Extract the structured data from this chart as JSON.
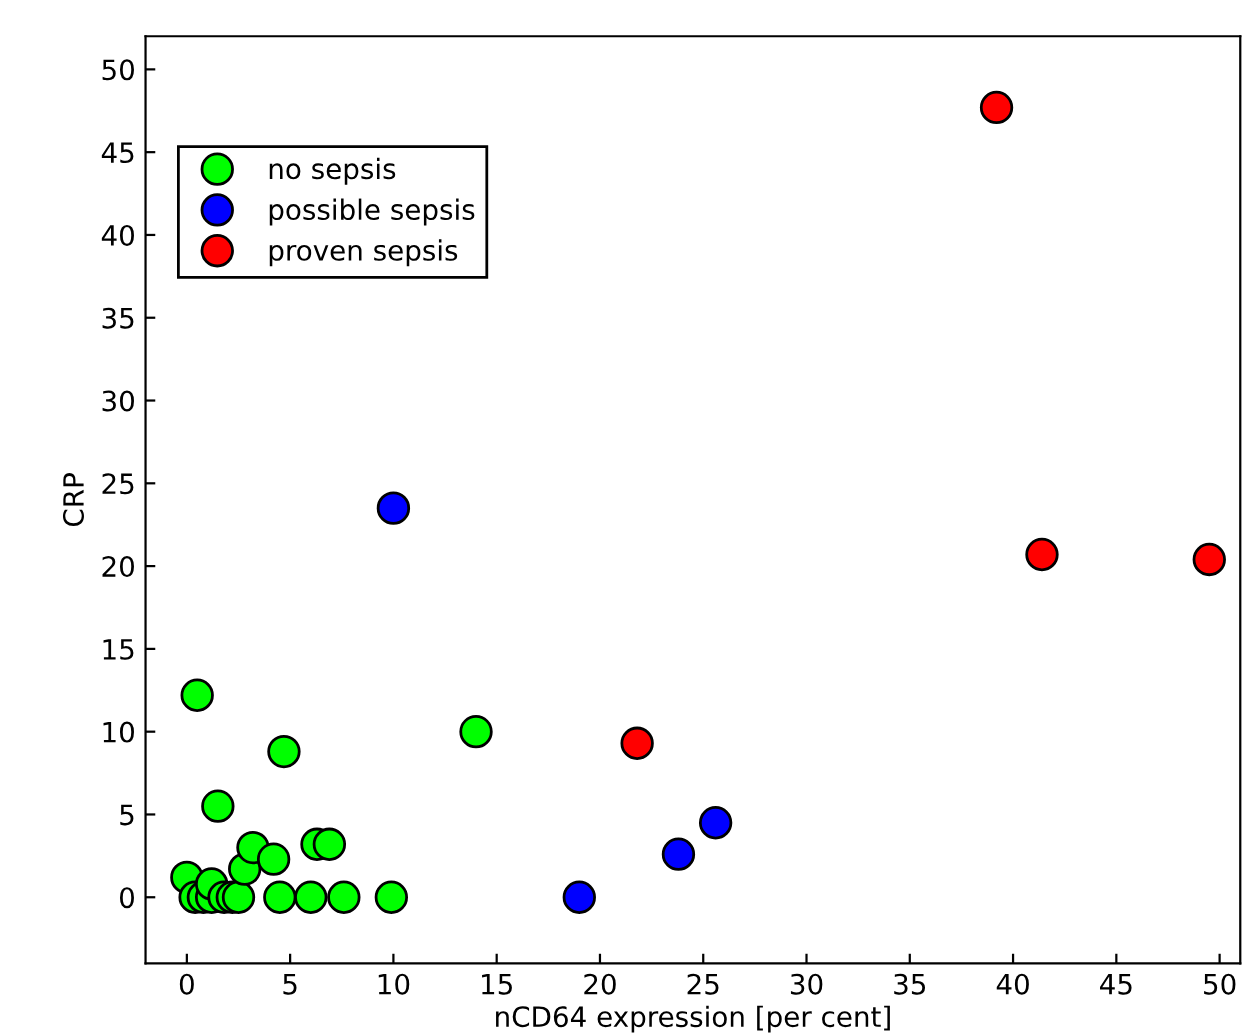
{
  "chart_data": {
    "type": "scatter",
    "xlabel": "nCD64 expression [per cent]",
    "ylabel": "CRP",
    "xlim": [
      -2,
      51
    ],
    "ylim": [
      -4,
      52
    ],
    "xticks": [
      0,
      5,
      10,
      15,
      20,
      25,
      30,
      35,
      40,
      45,
      50
    ],
    "yticks": [
      0,
      5,
      10,
      15,
      20,
      25,
      30,
      35,
      40,
      45,
      50
    ],
    "grid": false,
    "legend": "top left",
    "marker": "circle",
    "series": [
      {
        "name": "no sepsis",
        "color": "#00ff00",
        "x": [
          0,
          0.5,
          0.4,
          0.8,
          1.2,
          1.2,
          1.5,
          1.8,
          2.2,
          2.5,
          2.8,
          3.2,
          4.2,
          4.5,
          4.7,
          6.0,
          6.3,
          6.9,
          7.6,
          9.9,
          14
        ],
        "values": [
          1.2,
          12.2,
          0,
          0,
          0,
          0.8,
          5.5,
          0,
          0,
          0,
          1.7,
          3,
          2.3,
          0,
          8.8,
          0,
          3.2,
          3.2,
          0,
          0,
          10
        ]
      },
      {
        "name": "possible sepsis",
        "color": "#0000ff",
        "x": [
          10,
          19,
          23.8,
          25.6
        ],
        "values": [
          23.5,
          0,
          2.6,
          4.5
        ]
      },
      {
        "name": "proven sepsis",
        "color": "#ff0000",
        "x": [
          39.2,
          41.4,
          49.5,
          21.8
        ],
        "values": [
          47.7,
          20.7,
          20.4,
          9.3
        ]
      }
    ]
  }
}
